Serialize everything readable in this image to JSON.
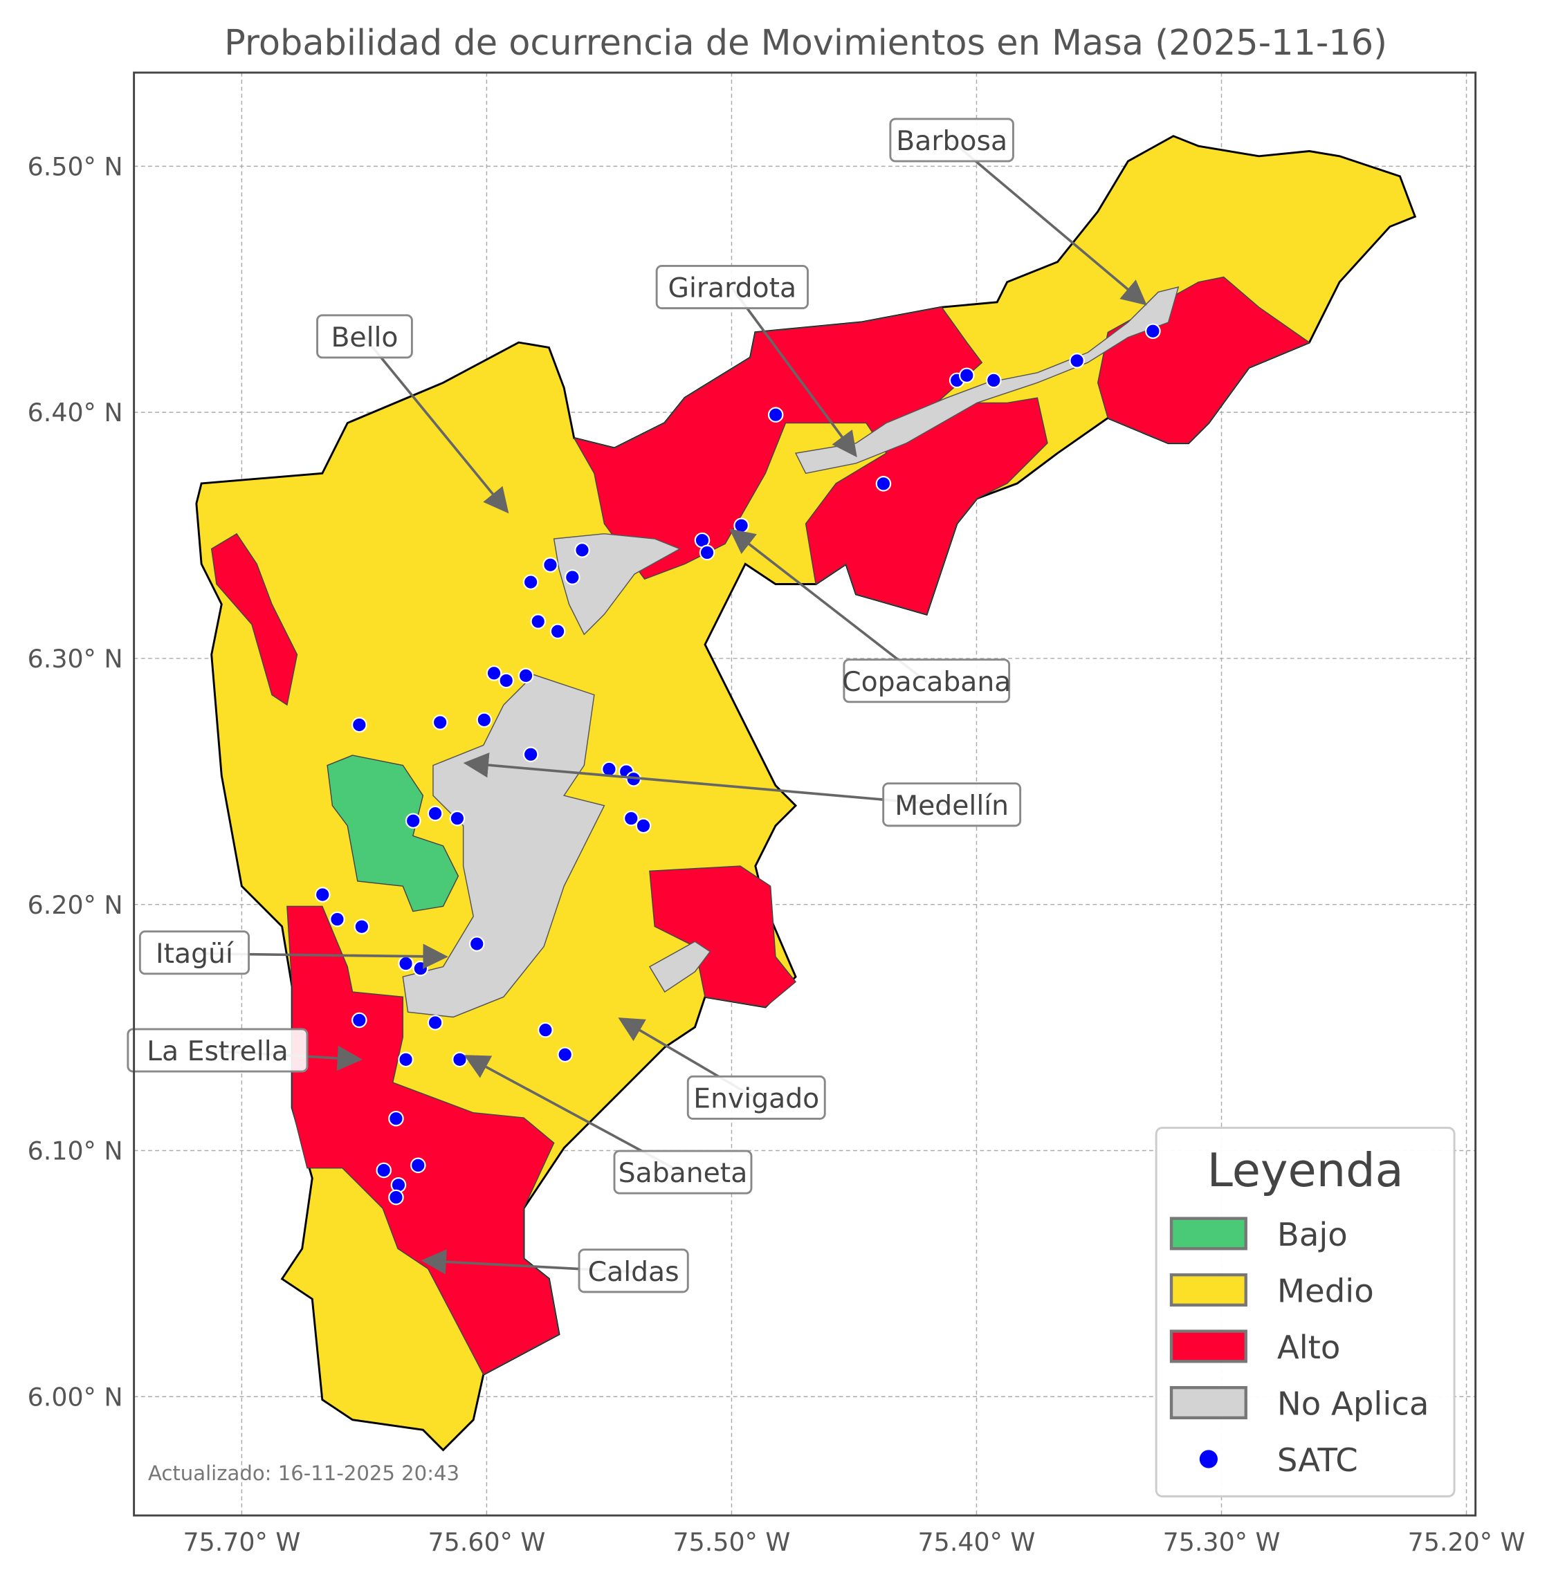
{
  "title": "Probabilidad de ocurrencia de Movimientos en Masa (2025-11-16)",
  "updated": "Actualizado: 16-11-2025 20:43",
  "axes": {
    "x_ticks": [
      "75.70° W",
      "75.60° W",
      "75.50° W",
      "75.40° W",
      "75.30° W",
      "75.20° W"
    ],
    "y_ticks": [
      "6.50° N",
      "6.40° N",
      "6.30° N",
      "6.20° N",
      "6.10° N",
      "6.00° N"
    ],
    "lon_range": [
      75.74,
      75.195
    ],
    "lat_range": [
      5.955,
      6.537
    ],
    "grid": true
  },
  "colors": {
    "bajo": "#4ac977",
    "medio": "#fce028",
    "alto": "#ff0032",
    "no_aplica": "#d3d3d3",
    "satc": "#0000ff"
  },
  "legend": {
    "title": "Leyenda",
    "placement": "lower-right",
    "items": [
      {
        "label": "Bajo",
        "key": "bajo"
      },
      {
        "label": "Medio",
        "key": "medio"
      },
      {
        "label": "Alto",
        "key": "alto"
      },
      {
        "label": "No Aplica",
        "key": "no_aplica"
      },
      {
        "label": "SATC",
        "key": "satc"
      }
    ]
  },
  "municipalities": [
    "Barbosa",
    "Girardota",
    "Bello",
    "Copacabana",
    "Medellín",
    "Itagüí",
    "La Estrella",
    "Envigado",
    "Sabaneta",
    "Caldas"
  ],
  "satc_stations": [
    [
      75.652,
      6.273
    ],
    [
      75.667,
      6.204
    ],
    [
      75.661,
      6.194
    ],
    [
      75.651,
      6.191
    ],
    [
      75.652,
      6.153
    ],
    [
      75.633,
      6.176
    ],
    [
      75.627,
      6.174
    ],
    [
      75.621,
      6.152
    ],
    [
      75.633,
      6.137
    ],
    [
      75.611,
      6.137
    ],
    [
      75.637,
      6.113
    ],
    [
      75.642,
      6.092
    ],
    [
      75.636,
      6.086
    ],
    [
      75.637,
      6.081
    ],
    [
      75.628,
      6.094
    ],
    [
      75.63,
      6.234
    ],
    [
      75.621,
      6.237
    ],
    [
      75.612,
      6.235
    ],
    [
      75.619,
      6.274
    ],
    [
      75.601,
      6.275
    ],
    [
      75.597,
      6.294
    ],
    [
      75.592,
      6.291
    ],
    [
      75.584,
      6.293
    ],
    [
      75.582,
      6.261
    ],
    [
      75.604,
      6.184
    ],
    [
      75.576,
      6.149
    ],
    [
      75.568,
      6.139
    ],
    [
      75.582,
      6.331
    ],
    [
      75.574,
      6.338
    ],
    [
      75.565,
      6.333
    ],
    [
      75.561,
      6.344
    ],
    [
      75.579,
      6.315
    ],
    [
      75.571,
      6.311
    ],
    [
      75.55,
      6.255
    ],
    [
      75.543,
      6.254
    ],
    [
      75.54,
      6.251
    ],
    [
      75.541,
      6.235
    ],
    [
      75.536,
      6.232
    ],
    [
      75.512,
      6.348
    ],
    [
      75.51,
      6.343
    ],
    [
      75.496,
      6.354
    ],
    [
      75.482,
      6.399
    ],
    [
      75.438,
      6.371
    ],
    [
      75.408,
      6.413
    ],
    [
      75.404,
      6.415
    ],
    [
      75.393,
      6.413
    ],
    [
      75.359,
      6.421
    ],
    [
      75.328,
      6.433
    ]
  ]
}
